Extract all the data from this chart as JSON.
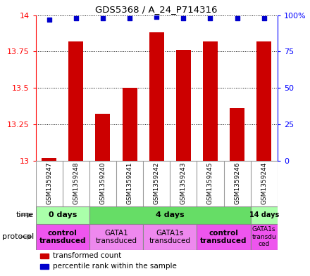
{
  "title": "GDS5368 / A_24_P714316",
  "samples": [
    "GSM1359247",
    "GSM1359248",
    "GSM1359240",
    "GSM1359241",
    "GSM1359242",
    "GSM1359243",
    "GSM1359245",
    "GSM1359246",
    "GSM1359244"
  ],
  "bar_values": [
    13.02,
    13.82,
    13.32,
    13.5,
    13.88,
    13.76,
    13.82,
    13.36,
    13.82
  ],
  "dot_values": [
    97,
    98,
    98,
    98,
    99,
    98,
    98,
    98,
    98
  ],
  "ylim": [
    13.0,
    14.0
  ],
  "y2lim": [
    0,
    100
  ],
  "yticks": [
    13.0,
    13.25,
    13.5,
    13.75,
    14.0
  ],
  "y2ticks": [
    0,
    25,
    50,
    75,
    100
  ],
  "bar_color": "#cc0000",
  "dot_color": "#0000cc",
  "bar_width": 0.55,
  "time_groups": [
    {
      "label": "0 days",
      "start": 0,
      "end": 2,
      "color": "#aaffaa"
    },
    {
      "label": "4 days",
      "start": 2,
      "end": 8,
      "color": "#66dd66"
    },
    {
      "label": "14 days",
      "start": 8,
      "end": 9,
      "color": "#aaffaa"
    }
  ],
  "protocol_groups": [
    {
      "label": "control\ntransduced",
      "start": 0,
      "end": 2,
      "color": "#ee55ee",
      "bold": true
    },
    {
      "label": "GATA1\ntransduced",
      "start": 2,
      "end": 4,
      "color": "#ee88ee",
      "bold": false
    },
    {
      "label": "GATA1s\ntransduced",
      "start": 4,
      "end": 6,
      "color": "#ee88ee",
      "bold": false
    },
    {
      "label": "control\ntransduced",
      "start": 6,
      "end": 8,
      "color": "#ee55ee",
      "bold": true
    },
    {
      "label": "GATA1s\ntransdu\nced",
      "start": 8,
      "end": 9,
      "color": "#ee55ee",
      "bold": false
    }
  ],
  "legend_items": [
    {
      "color": "#cc0000",
      "label": "transformed count"
    },
    {
      "color": "#0000cc",
      "label": "percentile rank within the sample"
    }
  ],
  "sample_bg": "#cccccc",
  "sample_border": "#999999"
}
